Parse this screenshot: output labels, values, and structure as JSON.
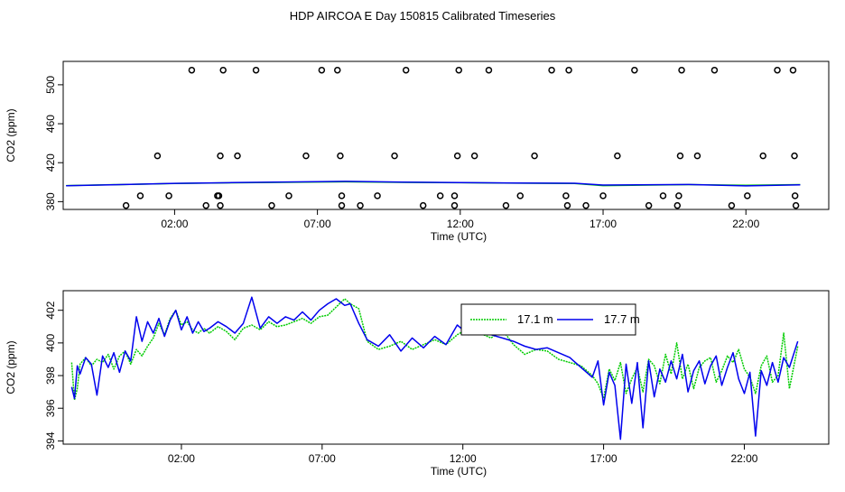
{
  "page_title": "HDP AIRCOA E  Day 150815  Calibrated Timeseries",
  "colors": {
    "green": "#00cc00",
    "blue": "#0000ee",
    "axis": "#000000"
  },
  "chart_data": [
    {
      "type": "scatter",
      "title": "",
      "xlabel": "Time (UTC)",
      "ylabel": "CO2 (ppm)",
      "x_units": "hours since 00:00 UTC",
      "xlim": [
        -1.9,
        24.9
      ],
      "ylim": [
        372,
        524
      ],
      "xticks": [
        2,
        7,
        12,
        17,
        22
      ],
      "xtick_labels": [
        "02:00",
        "07:00",
        "12:00",
        "17:00",
        "22:00"
      ],
      "yticks": [
        380,
        420,
        460,
        500
      ],
      "ytick_labels": [
        "380",
        "420",
        "460",
        "500"
      ],
      "grid": false,
      "calibration_points": {
        "x": [
          0.3,
          0.8,
          1.4,
          1.8,
          2.6,
          3.1,
          3.5,
          3.55,
          3.6,
          3.6,
          3.7,
          4.2,
          4.85,
          5.4,
          6.0,
          6.6,
          7.15,
          7.7,
          7.8,
          7.85,
          7.85,
          8.5,
          9.1,
          9.7,
          10.1,
          10.7,
          11.3,
          11.8,
          11.8,
          11.9,
          11.95,
          12.5,
          13.0,
          13.6,
          14.1,
          14.6,
          15.2,
          15.7,
          15.75,
          15.8,
          16.4,
          17.0,
          17.5,
          18.1,
          18.6,
          19.1,
          19.6,
          19.65,
          19.7,
          19.75,
          20.3,
          20.9,
          21.5,
          22.05,
          22.6,
          23.1,
          23.65,
          23.7,
          23.72,
          23.75
        ],
        "y": [
          376,
          386,
          427,
          386,
          515,
          376,
          386,
          386,
          376,
          427,
          515,
          427,
          515,
          376,
          386,
          427,
          515,
          515,
          427,
          386,
          376,
          376,
          386,
          427,
          515,
          376,
          386,
          376,
          386,
          427,
          515,
          427,
          515,
          376,
          386,
          427,
          515,
          386,
          376,
          515,
          376,
          386,
          427,
          515,
          376,
          386,
          376,
          386,
          427,
          515,
          427,
          515,
          376,
          386,
          427,
          515,
          515,
          427,
          386,
          376
        ]
      },
      "series": [
        {
          "color": "#00cc00",
          "x": [
            -1.8,
            2,
            4,
            7,
            8,
            10,
            12,
            14,
            16,
            17,
            20,
            22,
            23.9
          ],
          "y": [
            396.5,
            398.6,
            399.3,
            400.2,
            400.4,
            399.8,
            399.4,
            399.0,
            398.7,
            396.5,
            397.5,
            396.8,
            397.5
          ]
        },
        {
          "color": "#0000ee",
          "x": [
            -1.8,
            2,
            4,
            7,
            8,
            10,
            12,
            14,
            16,
            17,
            20,
            22,
            23.9
          ],
          "y": [
            396.3,
            398.8,
            399.5,
            400.5,
            400.8,
            400.0,
            399.6,
            399.1,
            398.9,
            397.0,
            397.6,
            396.2,
            397.3
          ]
        }
      ]
    },
    {
      "type": "line",
      "title": "",
      "xlabel": "Time (UTC)",
      "ylabel": "CO2 (ppm)",
      "x_units": "hours since 00:00 UTC",
      "xlim": [
        -2.2,
        25.0
      ],
      "ylim": [
        393.8,
        403.2
      ],
      "xticks": [
        2,
        7,
        12,
        17,
        22
      ],
      "xtick_labels": [
        "02:00",
        "07:00",
        "12:00",
        "17:00",
        "22:00"
      ],
      "yticks": [
        394,
        396,
        398,
        400,
        402
      ],
      "ytick_labels": [
        "394",
        "396",
        "398",
        "400",
        "402"
      ],
      "grid": false,
      "legend_position": "top-center",
      "series": [
        {
          "name": "17.1 m",
          "color": "#00cc00",
          "style": "dotted",
          "x": [
            -1.9,
            -1.8,
            -1.7,
            -1.6,
            -1.4,
            -1.2,
            -1.0,
            -0.8,
            -0.6,
            -0.4,
            -0.2,
            0.0,
            0.2,
            0.4,
            0.6,
            0.8,
            1.0,
            1.2,
            1.4,
            1.6,
            1.8,
            2.0,
            2.2,
            2.4,
            2.6,
            2.8,
            3.0,
            3.3,
            3.6,
            3.9,
            4.2,
            4.5,
            4.8,
            5.1,
            5.4,
            5.7,
            6.0,
            6.3,
            6.6,
            6.9,
            7.2,
            7.5,
            7.8,
            8.0,
            8.3,
            8.6,
            9.0,
            9.4,
            9.8,
            10.2,
            10.6,
            11.0,
            11.4,
            11.8,
            12.2,
            12.6,
            13.0,
            13.4,
            13.8,
            14.2,
            14.6,
            15.0,
            15.4,
            15.8,
            16.2,
            16.6,
            16.8,
            17.0,
            17.2,
            17.4,
            17.6,
            17.8,
            18.0,
            18.2,
            18.4,
            18.6,
            18.8,
            19.0,
            19.2,
            19.4,
            19.6,
            19.8,
            20.0,
            20.2,
            20.4,
            20.6,
            20.8,
            21.0,
            21.2,
            21.4,
            21.6,
            21.8,
            22.0,
            22.2,
            22.4,
            22.6,
            22.8,
            23.0,
            23.2,
            23.4,
            23.6,
            23.9
          ],
          "y": [
            398.8,
            396.5,
            397.2,
            398.7,
            399.1,
            398.6,
            399.0,
            398.8,
            399.3,
            398.4,
            399.2,
            399.5,
            398.7,
            399.6,
            399.2,
            399.8,
            400.3,
            401.2,
            400.5,
            401.5,
            402.0,
            401.1,
            401.3,
            400.8,
            400.6,
            400.9,
            400.6,
            401.0,
            400.7,
            400.2,
            400.9,
            401.1,
            400.8,
            401.3,
            401.0,
            401.1,
            401.3,
            401.5,
            401.2,
            401.6,
            401.7,
            402.2,
            402.7,
            402.4,
            402.1,
            400.1,
            399.6,
            399.8,
            400.1,
            399.6,
            399.9,
            400.2,
            399.9,
            400.5,
            400.9,
            400.6,
            400.3,
            400.8,
            399.9,
            399.3,
            399.6,
            399.5,
            399.0,
            398.8,
            398.6,
            398.0,
            397.5,
            396.6,
            398.4,
            397.7,
            398.8,
            396.9,
            397.8,
            398.5,
            397.0,
            399.0,
            398.6,
            397.5,
            399.3,
            398.1,
            400.0,
            397.8,
            398.7,
            397.2,
            398.5,
            398.9,
            399.1,
            397.6,
            398.3,
            399.2,
            398.8,
            399.6,
            398.4,
            397.9,
            396.9,
            398.6,
            399.2,
            397.6,
            398.0,
            400.6,
            397.2,
            399.8
          ]
        },
        {
          "name": "17.7 m",
          "color": "#0000ee",
          "style": "solid",
          "x": [
            -1.9,
            -1.8,
            -1.7,
            -1.6,
            -1.4,
            -1.2,
            -1.0,
            -0.8,
            -0.6,
            -0.4,
            -0.2,
            0.0,
            0.2,
            0.4,
            0.6,
            0.8,
            1.0,
            1.2,
            1.4,
            1.6,
            1.8,
            2.0,
            2.2,
            2.4,
            2.6,
            2.8,
            3.0,
            3.3,
            3.6,
            3.9,
            4.2,
            4.5,
            4.8,
            5.1,
            5.4,
            5.7,
            6.0,
            6.3,
            6.6,
            6.9,
            7.2,
            7.5,
            7.8,
            8.0,
            8.3,
            8.6,
            9.0,
            9.4,
            9.8,
            10.2,
            10.6,
            11.0,
            11.4,
            11.8,
            12.2,
            12.6,
            13.0,
            13.4,
            13.8,
            14.2,
            14.6,
            15.0,
            15.4,
            15.8,
            16.2,
            16.6,
            16.8,
            17.0,
            17.2,
            17.4,
            17.6,
            17.8,
            18.0,
            18.2,
            18.4,
            18.6,
            18.8,
            19.0,
            19.2,
            19.4,
            19.6,
            19.8,
            20.0,
            20.2,
            20.4,
            20.6,
            20.8,
            21.0,
            21.2,
            21.4,
            21.6,
            21.8,
            22.0,
            22.2,
            22.4,
            22.6,
            22.8,
            23.0,
            23.2,
            23.4,
            23.6,
            23.9
          ],
          "y": [
            397.3,
            396.6,
            398.6,
            398.1,
            399.1,
            398.7,
            396.8,
            399.2,
            398.5,
            399.4,
            398.2,
            399.5,
            398.9,
            401.6,
            400.1,
            401.3,
            400.6,
            401.5,
            400.4,
            401.4,
            402.0,
            400.8,
            401.6,
            400.6,
            401.3,
            400.7,
            400.9,
            401.3,
            401.0,
            400.6,
            401.2,
            402.8,
            400.9,
            401.6,
            401.2,
            401.6,
            401.4,
            401.9,
            401.4,
            402.0,
            402.4,
            402.7,
            402.3,
            402.4,
            401.2,
            400.2,
            399.8,
            400.5,
            399.5,
            400.3,
            399.7,
            400.4,
            399.9,
            401.1,
            400.5,
            401.2,
            400.5,
            400.3,
            400.1,
            399.8,
            399.6,
            399.7,
            399.4,
            399.1,
            398.5,
            397.9,
            398.9,
            396.2,
            398.2,
            397.4,
            394.1,
            398.7,
            396.3,
            398.8,
            394.8,
            398.9,
            396.7,
            398.4,
            397.6,
            398.9,
            397.8,
            399.3,
            397.0,
            398.3,
            398.9,
            397.5,
            398.6,
            399.2,
            397.4,
            398.5,
            399.4,
            397.8,
            396.9,
            398.2,
            394.3,
            398.3,
            397.4,
            398.8,
            397.6,
            399.1,
            398.5,
            400.1
          ]
        }
      ]
    }
  ]
}
